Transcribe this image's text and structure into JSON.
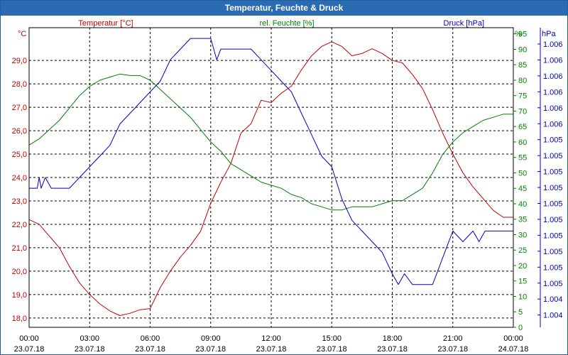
{
  "window": {
    "title": "Temperatur, Feuchte & Druck"
  },
  "colors": {
    "temperature": "#c00000",
    "humidity": "#008000",
    "pressure": "#0000c0",
    "grid": "#000000",
    "titlebar": "#2a6bb1"
  },
  "chart_data": {
    "type": "line",
    "title": "Temperatur, Feuchte & Druck",
    "grid": true,
    "x": {
      "unit": "hours",
      "range": [
        0,
        24
      ],
      "ticks": [
        {
          "time": "00:00",
          "date": "23.07.18"
        },
        {
          "time": "03:00",
          "date": "23.07.18"
        },
        {
          "time": "06:00",
          "date": "23.07.18"
        },
        {
          "time": "09:00",
          "date": "23.07.18"
        },
        {
          "time": "12:00",
          "date": "23.07.18"
        },
        {
          "time": "15:00",
          "date": "23.07.18"
        },
        {
          "time": "18:00",
          "date": "23.07.18"
        },
        {
          "time": "21:00",
          "date": "23.07.18"
        },
        {
          "time": "00:00",
          "date": "24.07.18"
        }
      ]
    },
    "axes": {
      "left": {
        "unit": "°C",
        "range": [
          17.6,
          30.4
        ],
        "ticks": [
          "29,0",
          "28,0",
          "27,0",
          "26,0",
          "25,0",
          "24,0",
          "23,0",
          "22,0",
          "21,0",
          "20,0",
          "19,0",
          "18,0"
        ],
        "tick_values": [
          29,
          28,
          27,
          26,
          25,
          24,
          23,
          22,
          21,
          20,
          19,
          18
        ]
      },
      "right1": {
        "unit": "%",
        "range": [
          0,
          97
        ],
        "ticks": [
          "95",
          "90",
          "85",
          "80",
          "75",
          "70",
          "65",
          "60",
          "55",
          "50",
          "45",
          "40",
          "35",
          "30",
          "25",
          "20",
          "15",
          "10",
          "5",
          "0"
        ],
        "tick_values": [
          95,
          90,
          85,
          80,
          75,
          70,
          65,
          60,
          55,
          50,
          45,
          40,
          35,
          30,
          25,
          20,
          15,
          10,
          5,
          0
        ]
      },
      "right2": {
        "unit": "hPa",
        "range": [
          1003.6,
          1006.4
        ],
        "ticks": [
          "1.006",
          "1.006",
          "1.006",
          "1.006",
          "1.006",
          "1.006",
          "1.005",
          "1.005",
          "1.005",
          "1.005",
          "1.005",
          "1.005",
          "1.005",
          "1.005",
          "1.005",
          "1.005",
          "1.004",
          "1.004"
        ]
      }
    },
    "legend": [
      "Temperatur [°C]",
      "rel. Feuchte [%]",
      "Druck [hPa]"
    ],
    "series": [
      {
        "name": "Temperatur [°C]",
        "axis": "left",
        "color": "#c00000",
        "points": [
          [
            0,
            22.2
          ],
          [
            0.5,
            22.0
          ],
          [
            1,
            21.5
          ],
          [
            1.5,
            21.0
          ],
          [
            2,
            20.2
          ],
          [
            2.5,
            19.5
          ],
          [
            3,
            19.0
          ],
          [
            3.5,
            18.6
          ],
          [
            4,
            18.3
          ],
          [
            4.5,
            18.1
          ],
          [
            5,
            18.2
          ],
          [
            5.5,
            18.35
          ],
          [
            6,
            18.4
          ],
          [
            6.5,
            19.3
          ],
          [
            7,
            20.0
          ],
          [
            7.5,
            20.6
          ],
          [
            8,
            21.1
          ],
          [
            8.5,
            21.7
          ],
          [
            9,
            22.9
          ],
          [
            9.5,
            23.8
          ],
          [
            10,
            24.6
          ],
          [
            10.5,
            25.9
          ],
          [
            11,
            26.3
          ],
          [
            11.5,
            27.3
          ],
          [
            12,
            27.2
          ],
          [
            12.5,
            27.6
          ],
          [
            13,
            27.9
          ],
          [
            13.5,
            28.6
          ],
          [
            14,
            29.2
          ],
          [
            14.5,
            29.6
          ],
          [
            15,
            29.8
          ],
          [
            15.5,
            29.6
          ],
          [
            16,
            29.2
          ],
          [
            16.5,
            29.3
          ],
          [
            17,
            29.5
          ],
          [
            17.5,
            29.3
          ],
          [
            18,
            29.0
          ],
          [
            18.5,
            28.9
          ],
          [
            19,
            28.4
          ],
          [
            19.5,
            27.8
          ],
          [
            20,
            26.9
          ],
          [
            20.5,
            25.9
          ],
          [
            21,
            25.0
          ],
          [
            21.5,
            24.2
          ],
          [
            22,
            23.6
          ],
          [
            22.5,
            23.1
          ],
          [
            23,
            22.6
          ],
          [
            23.5,
            22.3
          ],
          [
            24,
            22.3
          ]
        ]
      },
      {
        "name": "rel. Feuchte [%]",
        "axis": "right1",
        "color": "#008000",
        "points": [
          [
            0,
            59
          ],
          [
            0.5,
            61
          ],
          [
            1,
            64
          ],
          [
            1.5,
            67
          ],
          [
            2,
            71
          ],
          [
            2.5,
            75
          ],
          [
            3,
            78
          ],
          [
            3.5,
            80
          ],
          [
            4,
            81
          ],
          [
            4.5,
            82
          ],
          [
            5,
            81.5
          ],
          [
            5.5,
            81.5
          ],
          [
            6,
            80
          ],
          [
            6.5,
            77
          ],
          [
            7,
            74
          ],
          [
            7.5,
            71
          ],
          [
            8,
            68
          ],
          [
            8.5,
            64
          ],
          [
            9,
            60
          ],
          [
            9.5,
            57
          ],
          [
            10,
            53
          ],
          [
            10.5,
            51
          ],
          [
            11,
            49
          ],
          [
            11.5,
            47
          ],
          [
            12,
            46
          ],
          [
            12.5,
            45
          ],
          [
            13,
            43
          ],
          [
            13.5,
            42
          ],
          [
            14,
            40
          ],
          [
            14.5,
            39
          ],
          [
            15,
            38
          ],
          [
            15.5,
            38
          ],
          [
            16,
            39
          ],
          [
            16.5,
            39
          ],
          [
            17,
            39
          ],
          [
            17.5,
            40
          ],
          [
            18,
            41
          ],
          [
            18.5,
            41
          ],
          [
            19,
            43
          ],
          [
            19.5,
            45
          ],
          [
            20,
            50
          ],
          [
            20.5,
            56
          ],
          [
            21,
            60
          ],
          [
            21.5,
            63
          ],
          [
            22,
            65
          ],
          [
            22.5,
            67
          ],
          [
            23,
            68
          ],
          [
            23.5,
            69
          ],
          [
            24,
            69
          ]
        ]
      },
      {
        "name": "Druck [hPa]",
        "axis": "right2",
        "color": "#0000c0",
        "points": [
          [
            0,
            1004.9
          ],
          [
            0.4,
            1004.9
          ],
          [
            0.5,
            1005.0
          ],
          [
            0.6,
            1004.9
          ],
          [
            0.8,
            1005.0
          ],
          [
            1.1,
            1004.9
          ],
          [
            2,
            1004.9
          ],
          [
            2.5,
            1005.0
          ],
          [
            3,
            1005.1
          ],
          [
            3.5,
            1005.2
          ],
          [
            4,
            1005.3
          ],
          [
            4.5,
            1005.5
          ],
          [
            5,
            1005.6
          ],
          [
            5.5,
            1005.7
          ],
          [
            6,
            1005.8
          ],
          [
            6.5,
            1005.9
          ],
          [
            7,
            1006.1
          ],
          [
            7.5,
            1006.2
          ],
          [
            8,
            1006.3
          ],
          [
            9,
            1006.3
          ],
          [
            9.3,
            1006.1
          ],
          [
            9.5,
            1006.2
          ],
          [
            10,
            1006.2
          ],
          [
            11,
            1006.2
          ],
          [
            11.5,
            1006.1
          ],
          [
            12,
            1006.0
          ],
          [
            12.5,
            1005.9
          ],
          [
            13,
            1005.8
          ],
          [
            13.5,
            1005.6
          ],
          [
            14,
            1005.4
          ],
          [
            14.5,
            1005.2
          ],
          [
            15,
            1005.1
          ],
          [
            15.5,
            1004.8
          ],
          [
            16,
            1004.6
          ],
          [
            16.5,
            1004.5
          ],
          [
            17,
            1004.4
          ],
          [
            17.5,
            1004.3
          ],
          [
            18,
            1004.1
          ],
          [
            18.3,
            1004.0
          ],
          [
            18.6,
            1004.1
          ],
          [
            19,
            1004.0
          ],
          [
            20,
            1004.0
          ],
          [
            20.4,
            1004.2
          ],
          [
            20.8,
            1004.4
          ],
          [
            21,
            1004.5
          ],
          [
            21.5,
            1004.4
          ],
          [
            22,
            1004.5
          ],
          [
            22.3,
            1004.4
          ],
          [
            22.6,
            1004.5
          ],
          [
            23,
            1004.5
          ],
          [
            24,
            1004.5
          ]
        ]
      }
    ]
  }
}
